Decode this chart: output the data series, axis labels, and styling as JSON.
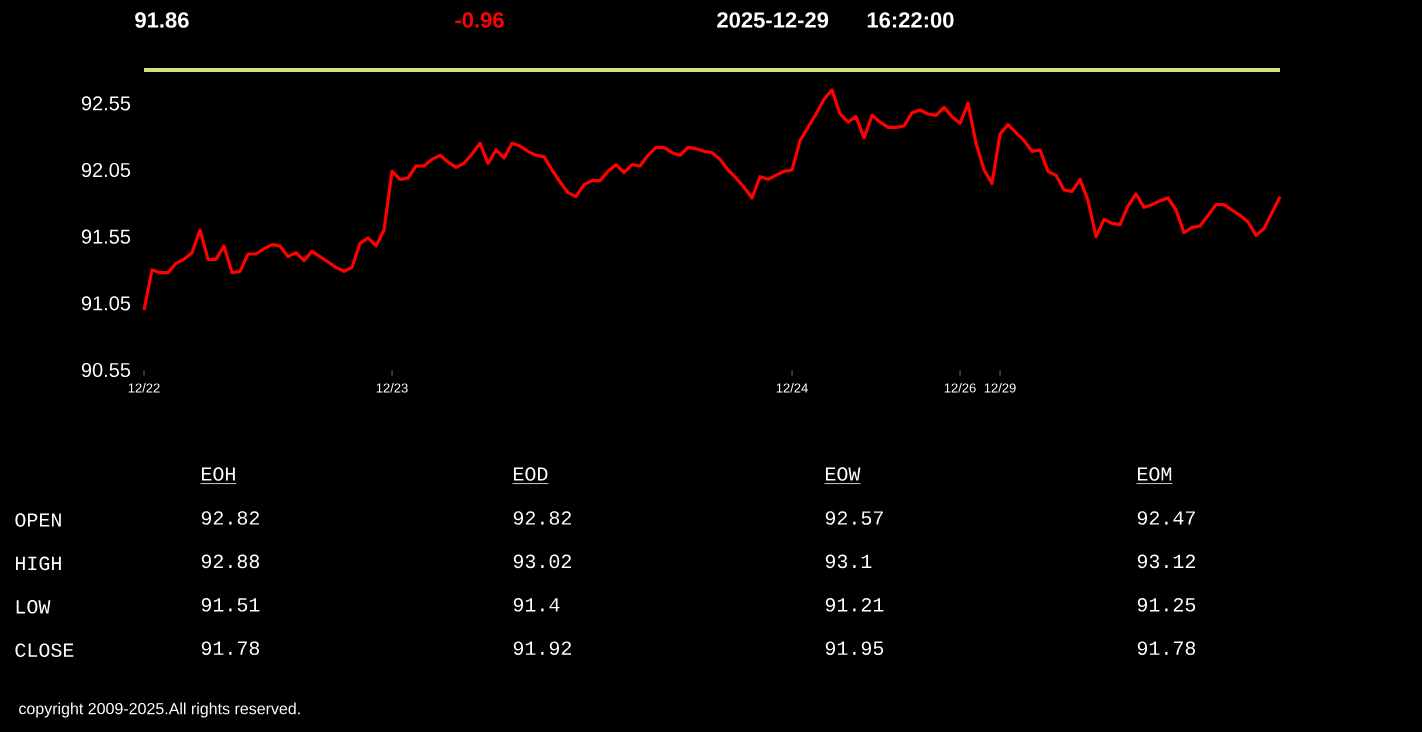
{
  "chart_data": [
    {
      "type": "line",
      "annotations": [
        "91.86",
        "-0.96",
        "2025-12-29",
        "16:22:00",
        "copyright 2009-2025.All rights reserved."
      ],
      "ylim": [
        90.55,
        92.8
      ],
      "yticks": [
        90.55,
        91.05,
        91.55,
        92.05,
        92.55
      ],
      "categories": [
        "12/22",
        null,
        null,
        null,
        null,
        null,
        null,
        null,
        null,
        null,
        null,
        null,
        null,
        null,
        null,
        null,
        null,
        null,
        null,
        null,
        null,
        null,
        null,
        null,
        null,
        null,
        null,
        null,
        null,
        null,
        null,
        "12/23",
        null,
        null,
        null,
        null,
        null,
        null,
        null,
        null,
        null,
        null,
        null,
        null,
        null,
        null,
        null,
        null,
        null,
        null,
        null,
        null,
        null,
        null,
        null,
        null,
        null,
        null,
        null,
        null,
        null,
        null,
        null,
        null,
        null,
        null,
        null,
        null,
        null,
        null,
        null,
        null,
        null,
        null,
        null,
        null,
        null,
        null,
        null,
        null,
        null,
        "12/24",
        null,
        null,
        null,
        null,
        null,
        null,
        null,
        null,
        null,
        null,
        null,
        null,
        null,
        null,
        null,
        null,
        null,
        null,
        null,
        null,
        "12/26",
        null,
        null,
        null,
        null,
        "12/29",
        null,
        null,
        null,
        null,
        null,
        null,
        null,
        null,
        null,
        null,
        null,
        null,
        null,
        null,
        null,
        null,
        null,
        null,
        null,
        null,
        null,
        null,
        null,
        null,
        null,
        null,
        null,
        null,
        null,
        null,
        null,
        null,
        null,
        null,
        null
      ],
      "ref_lines": [
        {
          "axis": "y",
          "value": 92.8,
          "color": "#d4df7f"
        }
      ],
      "series": [
        {
          "color": "#ff0000",
          "values": [
            91.0,
            91.3,
            91.28,
            91.28,
            91.35,
            91.38,
            91.43,
            91.6,
            91.38,
            91.38,
            91.48,
            91.28,
            91.29,
            91.42,
            91.42,
            91.46,
            91.49,
            91.48,
            91.4,
            91.43,
            91.37,
            91.44,
            91.4,
            91.36,
            91.32,
            91.29,
            91.32,
            91.5,
            91.54,
            91.48,
            91.6,
            92.04,
            91.98,
            91.99,
            92.08,
            92.08,
            92.13,
            92.16,
            92.11,
            92.07,
            92.1,
            92.17,
            92.25,
            92.1,
            92.2,
            92.14,
            92.25,
            92.23,
            92.19,
            92.16,
            92.15,
            92.05,
            91.96,
            91.88,
            91.85,
            91.94,
            91.97,
            91.97,
            92.04,
            92.09,
            92.03,
            92.09,
            92.08,
            92.16,
            92.22,
            92.22,
            92.18,
            92.16,
            92.22,
            92.21,
            92.19,
            92.18,
            92.13,
            92.05,
            91.99,
            91.92,
            91.84,
            92.0,
            91.98,
            92.01,
            92.04,
            92.05,
            92.27,
            92.37,
            92.47,
            92.58,
            92.65,
            92.47,
            92.41,
            92.45,
            92.29,
            92.46,
            92.41,
            92.37,
            92.37,
            92.38,
            92.48,
            92.5,
            92.47,
            92.46,
            92.52,
            92.45,
            92.4,
            92.55,
            92.25,
            92.05,
            91.95,
            92.32,
            92.39,
            92.33,
            92.27,
            92.19,
            92.2,
            92.04,
            92.01,
            91.9,
            91.89,
            91.98,
            91.82,
            91.55,
            91.68,
            91.65,
            91.64,
            91.78,
            91.87,
            91.77,
            91.79,
            91.82,
            91.84,
            91.75,
            91.58,
            91.62,
            91.63,
            91.71,
            91.79,
            91.79,
            91.75,
            91.71,
            91.66,
            91.56,
            91.61,
            91.73,
            91.85
          ]
        }
      ]
    },
    {
      "type": "heatmap",
      "data_labels": true,
      "categories": [
        "EOH",
        "EOD",
        "EOW",
        "EOM"
      ],
      "y_categories": [
        "OPEN",
        "HIGH",
        "LOW",
        "CLOSE"
      ],
      "cells": [
        [
          92.82,
          92.82,
          92.57,
          92.47
        ],
        [
          92.88,
          93.02,
          93.1,
          93.12
        ],
        [
          91.51,
          91.4,
          91.21,
          91.25
        ],
        [
          91.78,
          91.92,
          91.95,
          91.78
        ]
      ]
    }
  ]
}
